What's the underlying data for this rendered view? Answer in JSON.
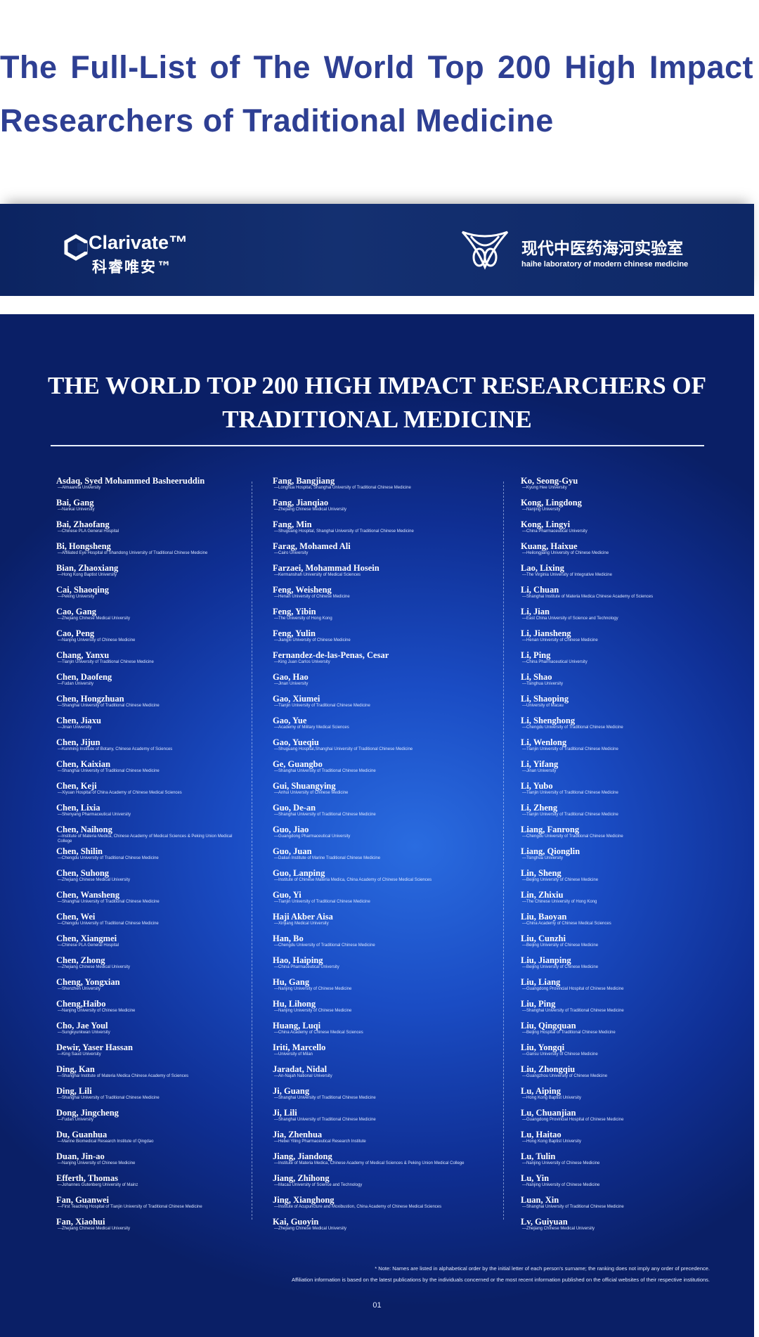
{
  "header": {
    "title": "The Full-List of The World Top 200 High Impact Researchers of Traditional Medicine"
  },
  "banner": {
    "clarivate": "Clarivate™",
    "clarivate_cn": "科睿唯安™",
    "lab_cn": "现代中医药海河实验室",
    "lab_en": "haihe laboratory of modern chinese medicine"
  },
  "poster": {
    "title": "THE WORLD TOP 200 HIGH IMPACT RESEARCHERS OF TRADITIONAL MEDICINE",
    "columns": [
      [
        {
          "name": "Asdaq, Syed Mohammed Basheeruddin",
          "affiliation": "—Almaarefa University"
        },
        {
          "name": "Bai, Gang",
          "affiliation": "—Nankai University"
        },
        {
          "name": "Bai, Zhaofang",
          "affiliation": "—Chinese PLA General Hospital"
        },
        {
          "name": "Bi, Hongsheng",
          "affiliation": "—Affiliated Eye Hospital of Shandong University of Traditional Chinese Medicine"
        },
        {
          "name": "Bian, Zhaoxiang",
          "affiliation": "—Hong Kong Baptist University"
        },
        {
          "name": "Cai, Shaoqing",
          "affiliation": "—Peking University"
        },
        {
          "name": "Cao, Gang",
          "affiliation": "—Zhejiang Chinese Medical University"
        },
        {
          "name": "Cao, Peng",
          "affiliation": "—Nanjing University of Chinese Medicine"
        },
        {
          "name": "Chang, Yanxu",
          "affiliation": "—Tianjin University of Traditional Chinese Medicine"
        },
        {
          "name": "Chen, Daofeng",
          "affiliation": "—Fudan University"
        },
        {
          "name": "Chen, Hongzhuan",
          "affiliation": "—Shanghai University of Traditional Chinese Medicine"
        },
        {
          "name": "Chen, Jiaxu",
          "affiliation": "—Jinan University"
        },
        {
          "name": "Chen, Jijun",
          "affiliation": "—Kunming Institute of Botany, Chinese Academy of Sciences"
        },
        {
          "name": "Chen, Kaixian",
          "affiliation": "—Shanghai University of Traditional Chinese Medicine"
        },
        {
          "name": "Chen, Keji",
          "affiliation": "—Xiyuan Hospital of China Academy of Chinese Medical Sciences"
        },
        {
          "name": "Chen, Lixia",
          "affiliation": "—Shenyang Pharmaceutical University"
        },
        {
          "name": "Chen, Naihong",
          "affiliation": "—Institute of Materia Medica, Chinese Academy of Medical Sciences & Peking Union Medical College"
        },
        {
          "name": "Chen, Shilin",
          "affiliation": "—Chengdu University of Traditional Chinese Medicine"
        },
        {
          "name": "Chen, Suhong",
          "affiliation": "—Zhejiang Chinese Medical University"
        },
        {
          "name": "Chen, Wansheng",
          "affiliation": "—Shanghai University of Traditional Chinese Medicine"
        },
        {
          "name": "Chen, Wei",
          "affiliation": "—Chengdu University of Traditional Chinese Medicine"
        },
        {
          "name": "Chen, Xiangmei",
          "affiliation": "—Chinese PLA General Hospital"
        },
        {
          "name": "Chen, Zhong",
          "affiliation": "—Zhejiang Chinese Medical University"
        },
        {
          "name": "Cheng, Yongxian",
          "affiliation": "—Shenzhen University"
        },
        {
          "name": "Cheng,Haibo",
          "affiliation": "—Nanjing University of Chinese Medicine"
        },
        {
          "name": "Cho, Jae Youl",
          "affiliation": "—Sungkyunkwan University"
        },
        {
          "name": "Dewir, Yaser Hassan",
          "affiliation": "—King Saud University"
        },
        {
          "name": "Ding, Kan",
          "affiliation": "—Shanghai Institute of Materia Medica Chinese Academy of Sciences"
        },
        {
          "name": "Ding, Lili",
          "affiliation": "—Shanghai University of Traditional Chinese Medicine"
        },
        {
          "name": "Dong, Jingcheng",
          "affiliation": "—Fudan University"
        },
        {
          "name": "Du, Guanhua",
          "affiliation": "—Marine Biomedical Research Institute of Qingdao"
        },
        {
          "name": "Duan, Jin-ao",
          "affiliation": "—Nanjing University of Chinese Medicine"
        },
        {
          "name": "Efferth, Thomas",
          "affiliation": "—Johannes Gutenberg University of Mainz"
        },
        {
          "name": "Fan, Guanwei",
          "affiliation": "—First Teaching Hospital of Tianjin University of Traditional Chinese Medicine"
        },
        {
          "name": "Fan, Xiaohui",
          "affiliation": "—Zhejiang Chinese Medical University"
        }
      ],
      [
        {
          "name": "Fang, Bangjiang",
          "affiliation": "—Longhua Hospital, Shanghai University of Traditional Chinese Medicine"
        },
        {
          "name": "Fang, Jianqiao",
          "affiliation": "—Zhejiang Chinese Medical University"
        },
        {
          "name": "Fang, Min",
          "affiliation": "—Shuguang Hospital, Shanghai University of Traditional Chinese Medicine"
        },
        {
          "name": "Farag, Mohamed Ali",
          "affiliation": "—Cairo University"
        },
        {
          "name": "Farzaei, Mohammad Hosein",
          "affiliation": "—Kermanshah University of Medical Sciences"
        },
        {
          "name": "Feng, Weisheng",
          "affiliation": "—Henan University of Chinese Medicine"
        },
        {
          "name": "Feng, Yibin",
          "affiliation": "—The University of Hong Kong"
        },
        {
          "name": "Feng, Yulin",
          "affiliation": "—Jiangxi University of Chinese Medicine"
        },
        {
          "name": "Fernandez-de-las-Penas, Cesar",
          "affiliation": "—King Juan Carlos University"
        },
        {
          "name": "Gao, Hao",
          "affiliation": "—Jinan University"
        },
        {
          "name": "Gao, Xiumei",
          "affiliation": "—Tianjin University of Traditional Chinese Medicine"
        },
        {
          "name": "Gao, Yue",
          "affiliation": "—Academy of Military Medical Sciences"
        },
        {
          "name": "Gao, Yueqiu",
          "affiliation": "—Shuguang Hospital,Shanghai University of Traditional Chinese Medicine"
        },
        {
          "name": "Ge, Guangbo",
          "affiliation": "—Shanghai University of Traditional Chinese Medicine"
        },
        {
          "name": "Gui, Shuangying",
          "affiliation": "—Anhui University of Chinese Medicine"
        },
        {
          "name": "Guo, De-an",
          "affiliation": "—Shanghai University of Traditional Chinese Medicine"
        },
        {
          "name": "Guo, Jiao",
          "affiliation": "—Guangdong Pharmaceutical University"
        },
        {
          "name": "Guo, Juan",
          "affiliation": "—Dalian Institute of Marine Traditional Chinese Medicine"
        },
        {
          "name": "Guo, Lanping",
          "affiliation": "—Institute of Chinese Materia Medica, China Academy of Chinese Medical Sciences"
        },
        {
          "name": "Guo, Yi",
          "affiliation": "—Tianjin University of Traditional Chinese Medicine"
        },
        {
          "name": "Haji Akber Aisa",
          "affiliation": "—Xinjiang Medical University"
        },
        {
          "name": "Han, Bo",
          "affiliation": "—Chengdu University of Traditional Chinese Medicine"
        },
        {
          "name": "Hao, Haiping",
          "affiliation": "—China Pharmaceutical University"
        },
        {
          "name": "Hu, Gang",
          "affiliation": "—Nanjing University of Chinese Medicine"
        },
        {
          "name": "Hu, Lihong",
          "affiliation": "—Nanjing University of Chinese Medicine"
        },
        {
          "name": "Huang, Luqi",
          "affiliation": "—China Academy of Chinese Medical Sciences"
        },
        {
          "name": "Iriti, Marcello",
          "affiliation": "—University of Milan"
        },
        {
          "name": "Jaradat, Nidal",
          "affiliation": "—An-Najah National University"
        },
        {
          "name": "Ji, Guang",
          "affiliation": "—Shanghai University of Traditional Chinese Medicine"
        },
        {
          "name": "Ji, Lili",
          "affiliation": "—Shanghai University of Traditional Chinese Medicine"
        },
        {
          "name": "Jia, Zhenhua",
          "affiliation": "—Hebei Yiling Pharmaceutical Research Institute"
        },
        {
          "name": "Jiang, Jiandong",
          "affiliation": "—Institute of Materia Medica, Chinese Academy of Medical Sciences & Peking Union Medical College"
        },
        {
          "name": "Jiang, Zhihong",
          "affiliation": "—Macau University of Science and Technology"
        },
        {
          "name": "Jing, Xianghong",
          "affiliation": "—Institute of Acupuncture and Moxibustion, China Academy of Chinese Medical Sciences"
        },
        {
          "name": "Kai, Guoyin",
          "affiliation": "—Zhejiang Chinese Medical University"
        }
      ],
      [
        {
          "name": "Ko, Seong-Gyu",
          "affiliation": "—Kyung Hee University"
        },
        {
          "name": "Kong, Lingdong",
          "affiliation": "—Nanjing University"
        },
        {
          "name": "Kong, Lingyi",
          "affiliation": "—China Pharmaceutical University"
        },
        {
          "name": "Kuang, Haixue",
          "affiliation": "—Heilongjiang University of Chinese Medicine"
        },
        {
          "name": "Lao, Lixing",
          "affiliation": "—The Virginia University of Integrative Medicine"
        },
        {
          "name": "Li, Chuan",
          "affiliation": "—Shanghai Institute of Materia Medica Chinese Academy of Sciences"
        },
        {
          "name": "Li, Jian",
          "affiliation": "—East China University of Science and Technology"
        },
        {
          "name": "Li, Jiansheng",
          "affiliation": "—Henan University of Chinese Medicine"
        },
        {
          "name": "Li, Ping",
          "affiliation": "—China Pharmaceutical University"
        },
        {
          "name": "Li, Shao",
          "affiliation": "—Tsinghua University"
        },
        {
          "name": "Li, Shaoping",
          "affiliation": "—University of Macau"
        },
        {
          "name": "Li, Shenghong",
          "affiliation": "—Chengdu University of Traditional Chinese Medicine"
        },
        {
          "name": "Li, Wenlong",
          "affiliation": "—Tianjin University of Traditional Chinese Medicine"
        },
        {
          "name": "Li, Yifang",
          "affiliation": "—Jinan University"
        },
        {
          "name": "Li, Yubo",
          "affiliation": "—Tianjin University of Traditional Chinese Medicine"
        },
        {
          "name": "Li, Zheng",
          "affiliation": "—Tianjin University of Traditional Chinese Medicine"
        },
        {
          "name": "Liang, Fanrong",
          "affiliation": "—Chengdu University of Traditional Chinese Medicine"
        },
        {
          "name": "Liang, Qionglin",
          "affiliation": "—Tsinghua University"
        },
        {
          "name": "Lin, Sheng",
          "affiliation": "—Beijing University of Chinese Medicine"
        },
        {
          "name": "Lin, Zhixiu",
          "affiliation": "—The Chinese University of Hong Kong"
        },
        {
          "name": "Liu, Baoyan",
          "affiliation": "—China Academy of Chinese Medical Sciences"
        },
        {
          "name": "Liu, Cunzhi",
          "affiliation": "—Beijing University of Chinese Medicine"
        },
        {
          "name": "Liu, Jianping",
          "affiliation": "—Beijing University of Chinese Medicine"
        },
        {
          "name": "Liu, Liang",
          "affiliation": "—Guangdong Provincial Hospital of Chinese Medicine"
        },
        {
          "name": "Liu, Ping",
          "affiliation": "—Shanghai University of Traditional Chinese Medicine"
        },
        {
          "name": "Liu, Qingquan",
          "affiliation": "—Beijing Hospital of Traditional Chinese Medicine"
        },
        {
          "name": "Liu, Yongqi",
          "affiliation": "—Gansu University of Chinese Medicine"
        },
        {
          "name": "Liu, Zhongqiu",
          "affiliation": "—Guangzhou University of Chinese Medicine"
        },
        {
          "name": "Lu, Aiping",
          "affiliation": "—Hong Kong Baptist University"
        },
        {
          "name": "Lu, Chuanjian",
          "affiliation": "—Guangdong Provincial Hospital of Chinese Medicine"
        },
        {
          "name": "Lu, Haitao",
          "affiliation": "—Hong Kong Baptist University"
        },
        {
          "name": "Lu, Tulin",
          "affiliation": "—Nanjing University of Chinese Medicine"
        },
        {
          "name": "Lu, Yin",
          "affiliation": "—Nanjing University of Chinese Medicine"
        },
        {
          "name": "Luan, Xin",
          "affiliation": "—Shanghai University of Traditional Chinese Medicine"
        },
        {
          "name": "Lv, Guiyuan",
          "affiliation": "—Zhejiang Chinese Medical University"
        }
      ]
    ],
    "notes": [
      "* Note: Names are listed in alphabetical order by the initial letter of each person's surname; the ranking does not imply any order of precedence.",
      "Affiliation information is based on the latest publications by the individuals concerned or the most recent information published on the official websites of their respective institutions."
    ],
    "page": "01"
  }
}
